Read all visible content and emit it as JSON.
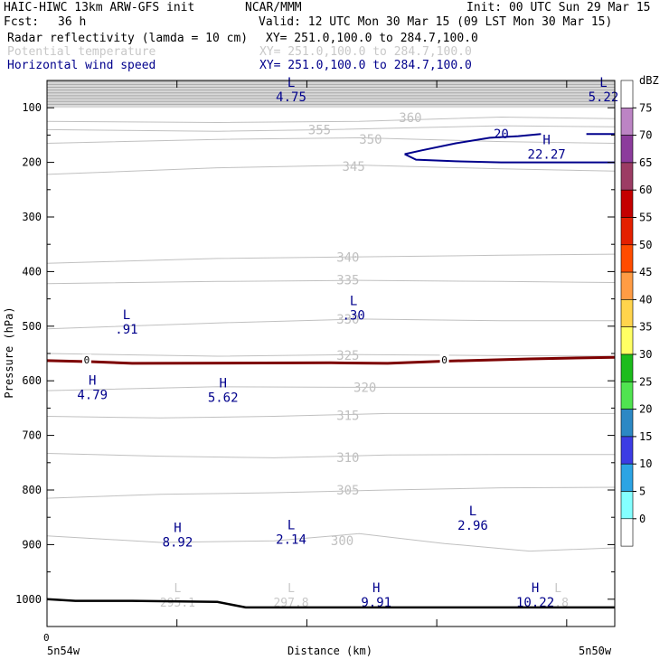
{
  "header": {
    "model": "HAIC-HIWC 13km ARW-GFS init",
    "center": "NCAR/MMM",
    "init": "Init: 00 UTC Sun 29 Mar 15",
    "fcst_label": "Fcst:",
    "fcst_value": "36 h",
    "valid": "Valid: 12 UTC Mon 30 Mar 15 (09 LST Mon 30 Mar 15)",
    "fields": [
      {
        "name": "Radar reflectivity (lamda = 10 cm)",
        "xy": "XY= 251.0,100.0 to 284.7,100.0",
        "color": "#000000"
      },
      {
        "name": "Potential temperature",
        "xy": "XY= 251.0,100.0 to 284.7,100.0",
        "color": "#c8c8c8"
      },
      {
        "name": "Horizontal wind speed",
        "xy": "XY= 251.0,100.0 to 284.7,100.0",
        "color": "#00008c"
      }
    ]
  },
  "chart_data": {
    "type": "cross-section",
    "ylabel": "Pressure (hPa)",
    "xlabel": "Distance (km)",
    "x_start_label": "5n54w",
    "x_end_label": "5n50w",
    "x_zero_label": "0",
    "y_ticks": [
      100,
      200,
      300,
      400,
      500,
      600,
      700,
      800,
      900,
      1000
    ],
    "ylim_hpa": [
      50,
      1050
    ],
    "xlim": [
      0,
      1
    ],
    "theta_contours": [
      {
        "label": "300",
        "points": [
          [
            0,
            884
          ],
          [
            0.2,
            896
          ],
          [
            0.4,
            893
          ],
          [
            0.55,
            880
          ],
          [
            0.7,
            898
          ],
          [
            0.85,
            912
          ],
          [
            1,
            906
          ]
        ],
        "label_at": [
          0.52,
          893
        ]
      },
      {
        "label": "305",
        "points": [
          [
            0,
            815
          ],
          [
            0.2,
            808
          ],
          [
            0.4,
            805
          ],
          [
            0.6,
            800
          ],
          [
            0.8,
            796
          ],
          [
            1,
            795
          ]
        ],
        "label_at": [
          0.53,
          800
        ]
      },
      {
        "label": "310",
        "points": [
          [
            0,
            733
          ],
          [
            0.2,
            738
          ],
          [
            0.4,
            741
          ],
          [
            0.6,
            736
          ],
          [
            0.8,
            735
          ],
          [
            1,
            735
          ]
        ],
        "label_at": [
          0.53,
          740
        ]
      },
      {
        "label": "315",
        "points": [
          [
            0,
            665
          ],
          [
            0.2,
            668
          ],
          [
            0.4,
            665
          ],
          [
            0.6,
            660
          ],
          [
            0.8,
            660
          ],
          [
            1,
            660
          ]
        ],
        "label_at": [
          0.53,
          663
        ]
      },
      {
        "label": "320",
        "points": [
          [
            0,
            618
          ],
          [
            0.3,
            611
          ],
          [
            0.55,
            612
          ],
          [
            0.75,
            612
          ],
          [
            1,
            612
          ]
        ],
        "label_at": [
          0.56,
          612
        ]
      },
      {
        "label": "325",
        "points": [
          [
            0,
            550
          ],
          [
            0.3,
            555
          ],
          [
            0.55,
            552
          ],
          [
            0.8,
            554
          ],
          [
            1,
            555
          ]
        ],
        "label_at": [
          0.53,
          553
        ]
      },
      {
        "label": "330",
        "points": [
          [
            0,
            505
          ],
          [
            0.3,
            494
          ],
          [
            0.55,
            487
          ],
          [
            0.8,
            490
          ],
          [
            1,
            490
          ]
        ],
        "label_at": [
          0.53,
          487
        ]
      },
      {
        "label": "335",
        "points": [
          [
            0,
            422
          ],
          [
            0.3,
            418
          ],
          [
            0.55,
            416
          ],
          [
            0.8,
            418
          ],
          [
            1,
            420
          ]
        ],
        "label_at": [
          0.53,
          415
        ]
      },
      {
        "label": "340",
        "points": [
          [
            0,
            385
          ],
          [
            0.3,
            376
          ],
          [
            0.55,
            373
          ],
          [
            0.8,
            370
          ],
          [
            1,
            368
          ]
        ],
        "label_at": [
          0.53,
          374
        ]
      },
      {
        "label": "345",
        "points": [
          [
            0,
            222
          ],
          [
            0.3,
            210
          ],
          [
            0.55,
            205
          ],
          [
            0.8,
            212
          ],
          [
            1,
            216
          ]
        ],
        "label_at": [
          0.54,
          207
        ]
      },
      {
        "label": "350",
        "points": [
          [
            0,
            165
          ],
          [
            0.3,
            158
          ],
          [
            0.55,
            155
          ],
          [
            0.8,
            162
          ],
          [
            1,
            165
          ]
        ],
        "label_at": [
          0.57,
          158
        ]
      },
      {
        "label": "355",
        "points": [
          [
            0,
            140
          ],
          [
            0.3,
            143
          ],
          [
            0.5,
            140
          ],
          [
            0.8,
            133
          ],
          [
            1,
            135
          ]
        ],
        "label_at": [
          0.48,
          140
        ]
      },
      {
        "label": "360",
        "points": [
          [
            0,
            125
          ],
          [
            0.3,
            127
          ],
          [
            0.55,
            125
          ],
          [
            0.8,
            117
          ],
          [
            1,
            120
          ]
        ],
        "label_at": [
          0.64,
          118
        ]
      }
    ],
    "theta_labels_low": [
      {
        "kind": "L",
        "value": "295.1",
        "x": 0.23,
        "p": 1000
      },
      {
        "kind": "L",
        "value": "297.8",
        "x": 0.43,
        "p": 1000
      },
      {
        "kind": "L",
        "value": "?.8",
        "x": 0.9,
        "p": 1000
      }
    ],
    "wind_isotach": {
      "label": "20",
      "points": [
        [
          0.63,
          185
        ],
        [
          0.66,
          178
        ],
        [
          0.72,
          165
        ],
        [
          0.78,
          155
        ],
        [
          0.83,
          152
        ],
        [
          0.87,
          148
        ]
      ],
      "closing": [
        [
          0.63,
          185
        ],
        [
          0.65,
          195
        ],
        [
          0.72,
          198
        ],
        [
          0.8,
          200
        ],
        [
          0.9,
          200
        ],
        [
          1,
          200
        ]
      ],
      "segment2": [
        [
          0.95,
          148
        ],
        [
          1,
          148
        ]
      ],
      "label_at": [
        0.8,
        148
      ]
    },
    "wind_extrema": [
      {
        "kind": "L",
        "value": "4.75",
        "x": 0.43,
        "p": 75
      },
      {
        "kind": "L",
        "value": "5.22",
        "x": 0.98,
        "p": 75
      },
      {
        "kind": "H",
        "value": "22.27",
        "x": 0.88,
        "p": 180
      },
      {
        "kind": "L",
        "value": ".30",
        "x": 0.54,
        "p": 475
      },
      {
        "kind": "L",
        "value": ".91",
        "x": 0.14,
        "p": 500
      },
      {
        "kind": "H",
        "value": "4.79",
        "x": 0.08,
        "p": 620
      },
      {
        "kind": "H",
        "value": "5.62",
        "x": 0.31,
        "p": 625
      },
      {
        "kind": "H",
        "value": "8.92",
        "x": 0.23,
        "p": 890
      },
      {
        "kind": "L",
        "value": "2.14",
        "x": 0.43,
        "p": 885
      },
      {
        "kind": "L",
        "value": "2.96",
        "x": 0.75,
        "p": 860
      },
      {
        "kind": "H",
        "value": "9.91",
        "x": 0.58,
        "p": 1000
      },
      {
        "kind": "H",
        "value": "10.22",
        "x": 0.86,
        "p": 1000
      }
    ],
    "reflectivity_zero_contour": {
      "label": "0",
      "points": [
        [
          0,
          563
        ],
        [
          0.08,
          565
        ],
        [
          0.15,
          568
        ],
        [
          0.5,
          567
        ],
        [
          0.6,
          568
        ],
        [
          0.7,
          564
        ],
        [
          0.85,
          560
        ],
        [
          1,
          557
        ]
      ],
      "label_at": [
        [
          0.07,
          563
        ],
        [
          0.7,
          563
        ]
      ],
      "color": "#7d0000"
    },
    "terrain": {
      "points": [
        [
          0,
          1000
        ],
        [
          0.05,
          1003
        ],
        [
          0.15,
          1003
        ],
        [
          0.3,
          1005
        ],
        [
          0.35,
          1015
        ],
        [
          1,
          1015
        ]
      ]
    },
    "colorbar": {
      "unit": "dBZ",
      "labels": [
        "75",
        "70",
        "65",
        "60",
        "55",
        "50",
        "45",
        "40",
        "35",
        "30",
        "25",
        "20",
        "15",
        "10",
        "5",
        "0"
      ],
      "colors": [
        "#ffffff",
        "#bc84c4",
        "#8c3c9c",
        "#9c3c64",
        "#c40000",
        "#e42000",
        "#ff4c00",
        "#ff9c44",
        "#ffd44c",
        "#ffff64",
        "#1cbc1c",
        "#50e450",
        "#2c88c4",
        "#3c3ce4",
        "#2ca4e4",
        "#84ffff",
        "#ffffff"
      ]
    }
  }
}
